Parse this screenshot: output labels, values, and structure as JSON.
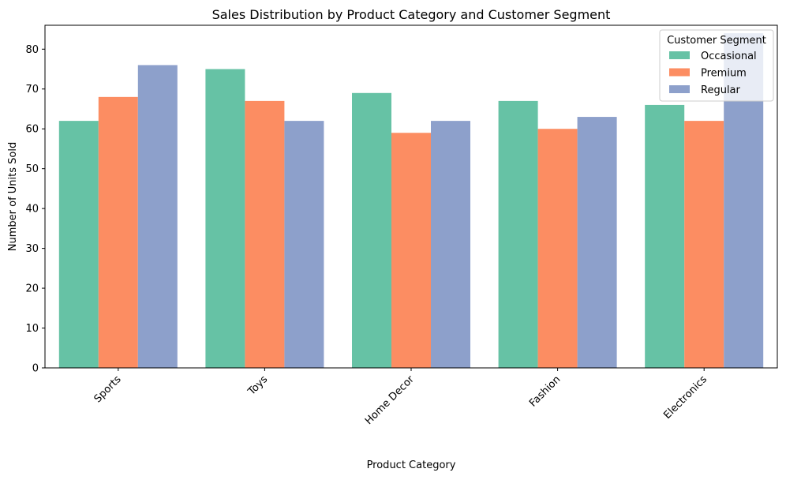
{
  "chart_data": {
    "type": "bar",
    "title": "Sales Distribution by Product Category and Customer Segment",
    "xlabel": "Product Category",
    "ylabel": "Number of Units Sold",
    "categories": [
      "Sports",
      "Toys",
      "Home Decor",
      "Fashion",
      "Electronics"
    ],
    "series": [
      {
        "name": "Occasional",
        "color": "#66c2a5",
        "values": [
          62,
          75,
          69,
          67,
          66
        ]
      },
      {
        "name": "Premium",
        "color": "#fc8d62",
        "values": [
          68,
          67,
          59,
          60,
          62
        ]
      },
      {
        "name": "Regular",
        "color": "#8da0cb",
        "values": [
          76,
          62,
          62,
          63,
          84
        ]
      }
    ],
    "ylim": [
      0,
      86
    ],
    "yticks": [
      0,
      10,
      20,
      30,
      40,
      50,
      60,
      70,
      80
    ],
    "grid": false,
    "legend": {
      "title": "Customer Segment",
      "placement": "top-right"
    }
  }
}
